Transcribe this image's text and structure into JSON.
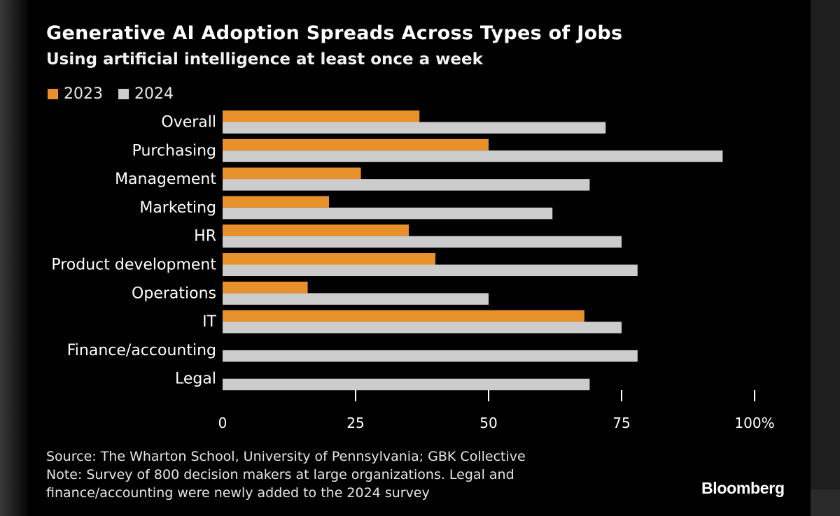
{
  "title": "Generative AI Adoption Spreads Across Types of Jobs",
  "subtitle": "Using artificial intelligence at least once a week",
  "legend": [
    {
      "label": "2023",
      "color": "#e8912a"
    },
    {
      "label": "2024",
      "color": "#cccccc"
    }
  ],
  "chart_data": {
    "type": "bar",
    "orientation": "horizontal",
    "title": "Generative AI Adoption Spreads Across Types of Jobs",
    "subtitle": "Using artificial intelligence at least once a week",
    "categories": [
      "Overall",
      "Purchasing",
      "Management",
      "Marketing",
      "HR",
      "Product development",
      "Operations",
      "IT",
      "Finance/accounting",
      "Legal"
    ],
    "series": [
      {
        "name": "2023",
        "color": "#e8912a",
        "values": [
          37,
          50,
          26,
          20,
          35,
          40,
          16,
          68,
          null,
          null
        ]
      },
      {
        "name": "2024",
        "color": "#cccccc",
        "values": [
          72,
          94,
          69,
          62,
          75,
          78,
          50,
          75,
          78,
          69
        ]
      }
    ],
    "xlim": [
      0,
      100
    ],
    "ticks": [
      0,
      25,
      50,
      75,
      100
    ],
    "tick_labels": [
      "0",
      "25",
      "50",
      "75",
      "100%"
    ],
    "xlabel": "",
    "ylabel": "",
    "grid": false,
    "legend_position": "top-left"
  },
  "footer": {
    "source": "Source: The Wharton School, University of Pennsylvania; GBK Collective",
    "note_line1": "Note: Survey of 800 decision makers at large organizations. Legal and",
    "note_line2": "finance/accounting were newly added to the 2024 survey"
  },
  "brand": "Bloomberg"
}
